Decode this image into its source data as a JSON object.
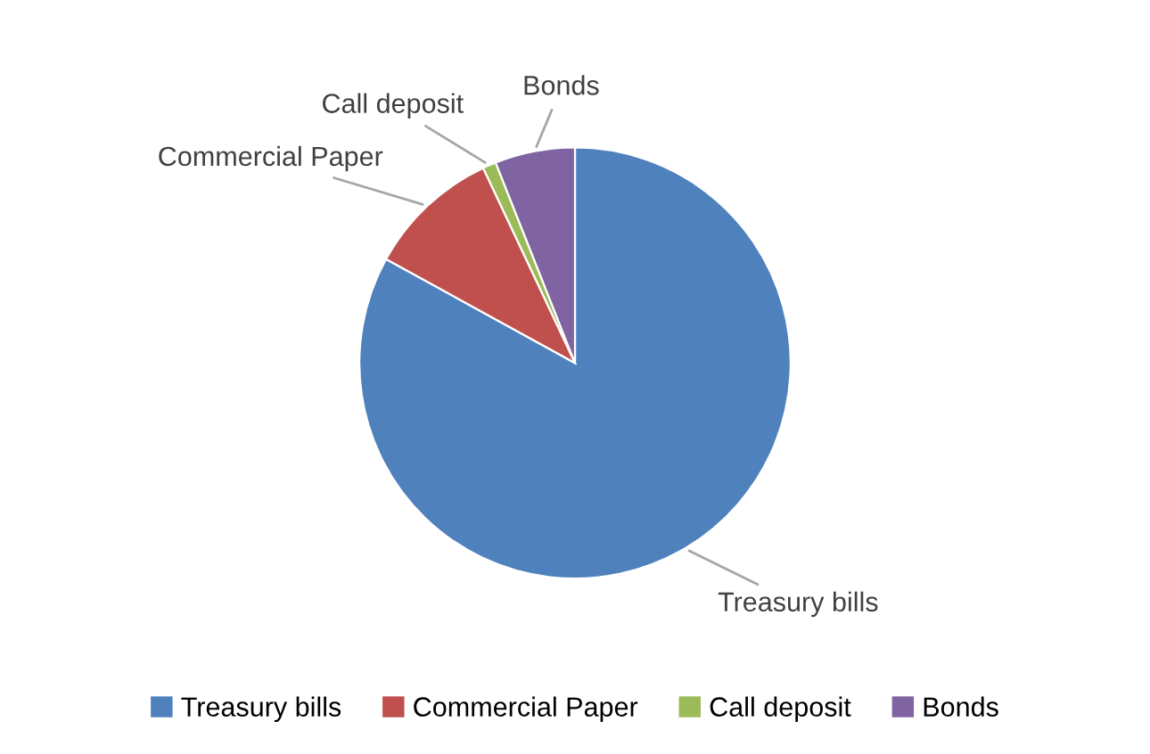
{
  "chart_data": {
    "type": "pie",
    "categories": [
      "Treasury bills",
      "Commercial Paper",
      "Call deposit",
      "Bonds"
    ],
    "values": [
      83,
      10,
      1,
      6
    ],
    "colors": [
      "#4f81bd",
      "#c0504d",
      "#9bbb59",
      "#8064a2"
    ],
    "legend": "bottom"
  }
}
